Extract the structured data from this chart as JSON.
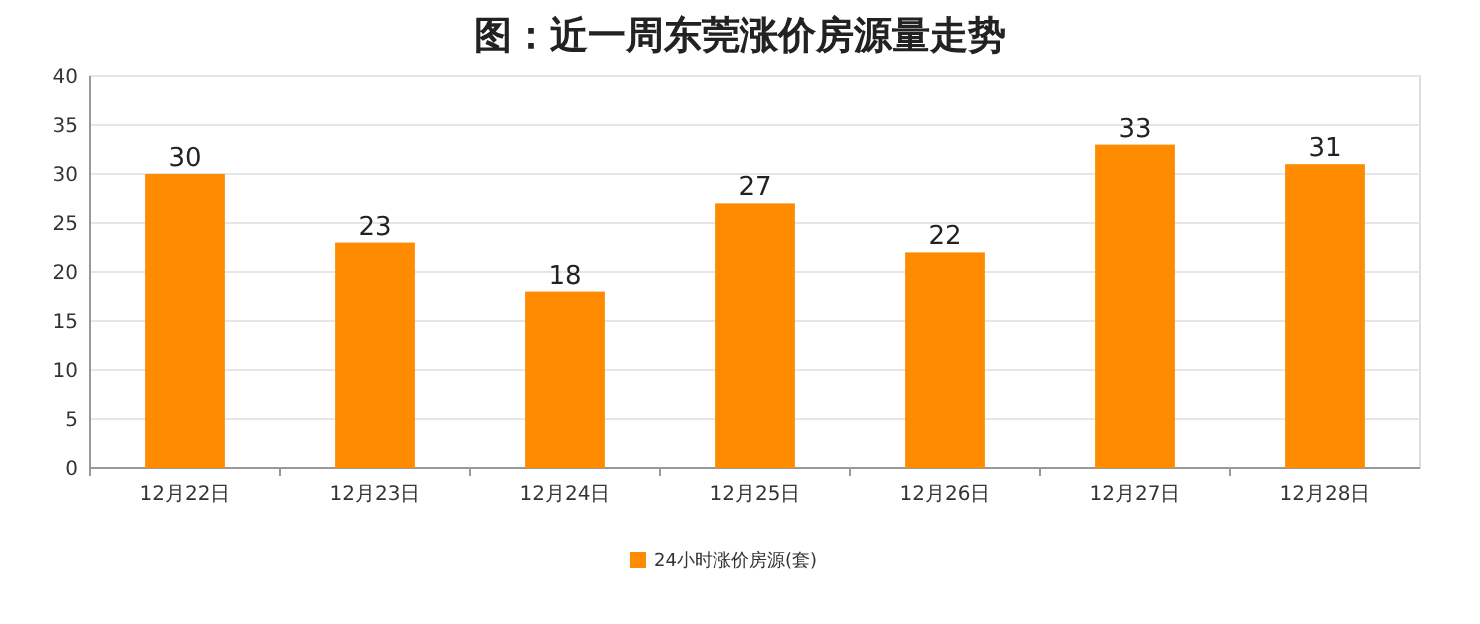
{
  "chart_data": {
    "type": "bar",
    "title": "图：近一周东莞涨价房源量走势",
    "categories": [
      "12月22日",
      "12月23日",
      "12月24日",
      "12月25日",
      "12月26日",
      "12月27日",
      "12月28日"
    ],
    "series": [
      {
        "name": "24小时涨价房源(套)",
        "color": "#ff8c00",
        "values": [
          30,
          23,
          18,
          27,
          22,
          33,
          31
        ]
      }
    ],
    "ylim": [
      0,
      40
    ],
    "yticks": [
      0,
      5,
      10,
      15,
      20,
      25,
      30,
      35,
      40
    ],
    "grid": "y",
    "legend": "bottom",
    "data_labels": true
  }
}
